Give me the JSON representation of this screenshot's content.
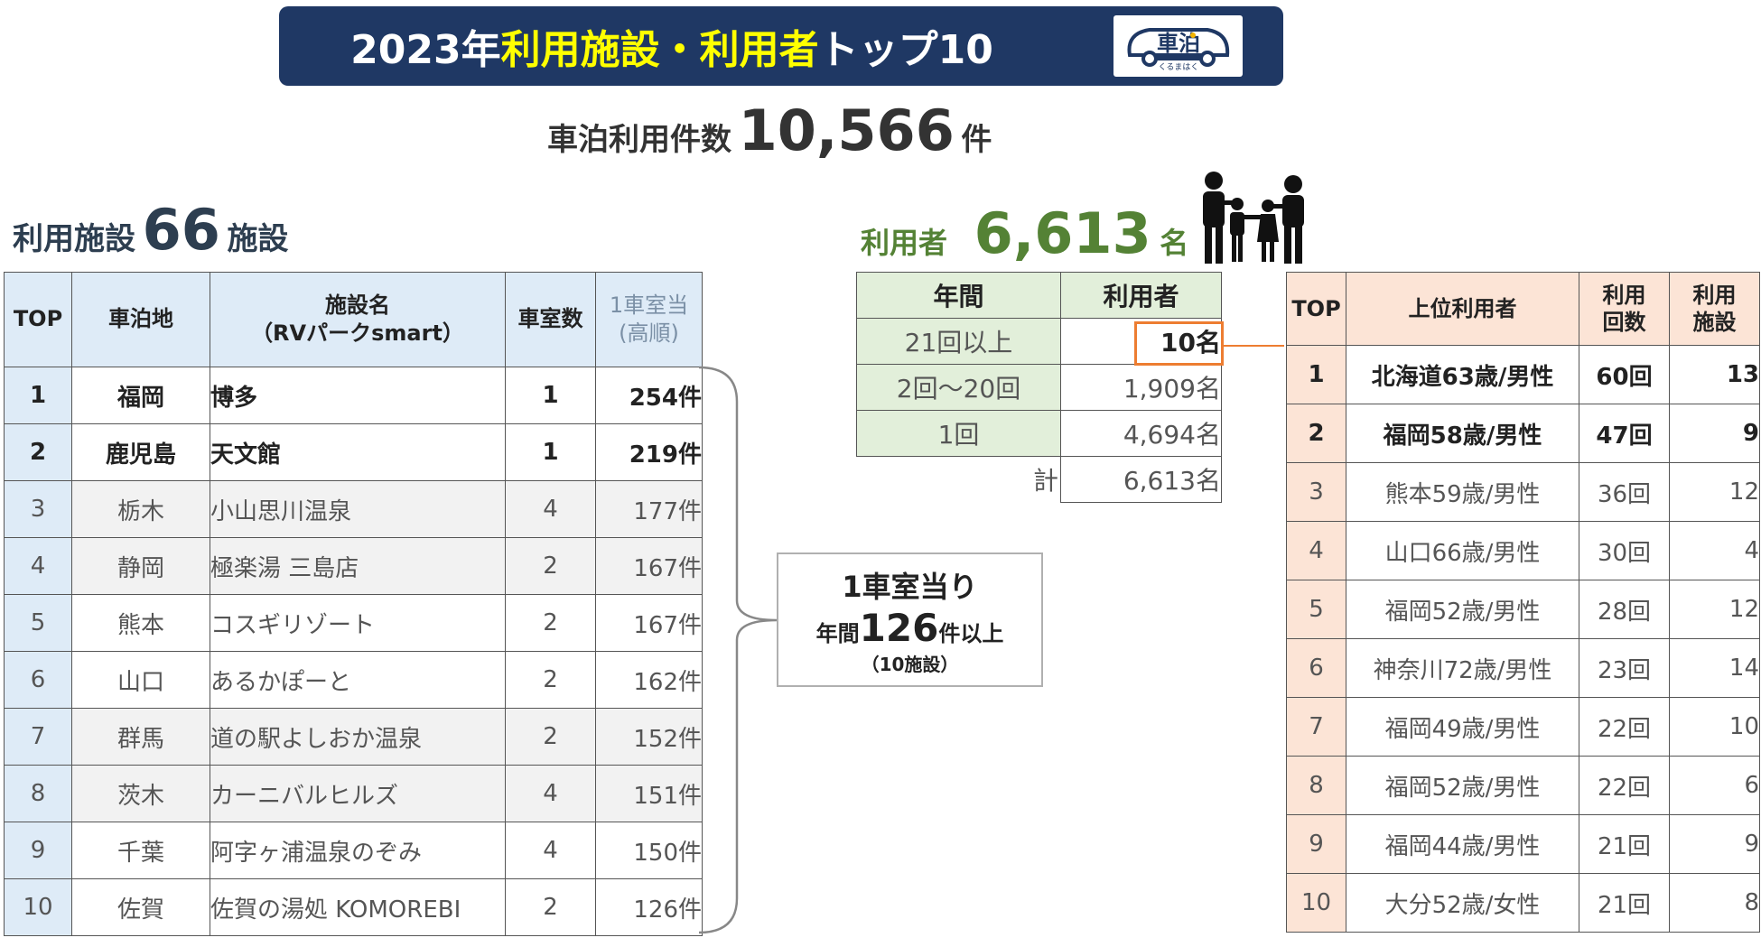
{
  "header": {
    "title_prefix": "2023年 ",
    "title_highlight": "利用施設・利用者",
    "title_suffix": "トップ10",
    "logo_text": "車泊",
    "logo_subtext": "くるまはく"
  },
  "summary": {
    "total_label": "車泊利用件数",
    "total_value": "10,566",
    "total_unit": "件",
    "facility_label": "利用施設",
    "facility_value": "66",
    "facility_unit": "施設",
    "user_label": "利用者",
    "user_value": "6,613",
    "user_unit": "名"
  },
  "facility_table": {
    "headers": {
      "top": "TOP",
      "place": "車泊地",
      "name_line1": "施設名",
      "name_line2": "（RVパークsmart）",
      "rooms": "車室数",
      "per_line1": "1車室当",
      "per_line2": "(高順)"
    },
    "rows": [
      {
        "rank": "1",
        "pref": "福岡",
        "name": "博多",
        "rooms": "1",
        "count": "254件"
      },
      {
        "rank": "2",
        "pref": "鹿児島",
        "name": "天文館",
        "rooms": "1",
        "count": "219件"
      },
      {
        "rank": "3",
        "pref": "栃木",
        "name": "小山思川温泉",
        "rooms": "4",
        "count": "177件"
      },
      {
        "rank": "4",
        "pref": "静岡",
        "name": "極楽湯 三島店",
        "rooms": "2",
        "count": "167件"
      },
      {
        "rank": "5",
        "pref": "熊本",
        "name": "コスギリゾート",
        "rooms": "2",
        "count": "167件"
      },
      {
        "rank": "6",
        "pref": "山口",
        "name": "あるかぽーと",
        "rooms": "2",
        "count": "162件"
      },
      {
        "rank": "7",
        "pref": "群馬",
        "name": "道の駅よしおか温泉",
        "rooms": "2",
        "count": "152件"
      },
      {
        "rank": "8",
        "pref": "茨木",
        "name": "カーニバルヒルズ",
        "rooms": "4",
        "count": "151件"
      },
      {
        "rank": "9",
        "pref": "千葉",
        "name": "阿字ヶ浦温泉のぞみ",
        "rooms": "4",
        "count": "150件"
      },
      {
        "rank": "10",
        "pref": "佐賀",
        "name": "佐賀の湯処 KOMOREBI",
        "rooms": "2",
        "count": "126件"
      }
    ]
  },
  "callout": {
    "line1": "1車室当り",
    "line2_prefix": "年間",
    "line2_num": "126",
    "line2_suffix": "件以上",
    "line3": "（10施設）"
  },
  "freq_table": {
    "header_period": "年間",
    "header_users": "利用者",
    "rows": [
      {
        "label": "21回以上",
        "value": "10名"
      },
      {
        "label": "2回～20回",
        "value": "1,909名"
      },
      {
        "label": "1回",
        "value": "4,694名"
      }
    ],
    "total_label": "計",
    "total_value": "6,613名"
  },
  "user_table": {
    "headers": {
      "top": "TOP",
      "user": "上位利用者",
      "times_line1": "利用",
      "times_line2": "回数",
      "fac_line1": "利用",
      "fac_line2": "施設"
    },
    "rows": [
      {
        "rank": "1",
        "user": "北海道63歳/男性",
        "times": "60回",
        "facilities": "13"
      },
      {
        "rank": "2",
        "user": "福岡58歳/男性",
        "times": "47回",
        "facilities": "9"
      },
      {
        "rank": "3",
        "user": "熊本59歳/男性",
        "times": "36回",
        "facilities": "12"
      },
      {
        "rank": "4",
        "user": "山口66歳/男性",
        "times": "30回",
        "facilities": "4"
      },
      {
        "rank": "5",
        "user": "福岡52歳/男性",
        "times": "28回",
        "facilities": "12"
      },
      {
        "rank": "6",
        "user": "神奈川72歳/男性",
        "times": "23回",
        "facilities": "14"
      },
      {
        "rank": "7",
        "user": "福岡49歳/男性",
        "times": "22回",
        "facilities": "10"
      },
      {
        "rank": "8",
        "user": "福岡52歳/男性",
        "times": "22回",
        "facilities": "6"
      },
      {
        "rank": "9",
        "user": "福岡44歳/男性",
        "times": "21回",
        "facilities": "9"
      },
      {
        "rank": "10",
        "user": "大分52歳/女性",
        "times": "21回",
        "facilities": "8"
      }
    ]
  },
  "colors": {
    "header_bg": "#1f3864",
    "header_highlight": "#ffff00",
    "facility_header_bg": "#deebf7",
    "freq_header_bg": "#e2efda",
    "user_header_bg": "#fce4d6",
    "user_count_green": "#548235",
    "highlight_orange": "#ed7d31"
  },
  "icons": {
    "family": "family-icon",
    "logo": "car-logo-icon"
  }
}
